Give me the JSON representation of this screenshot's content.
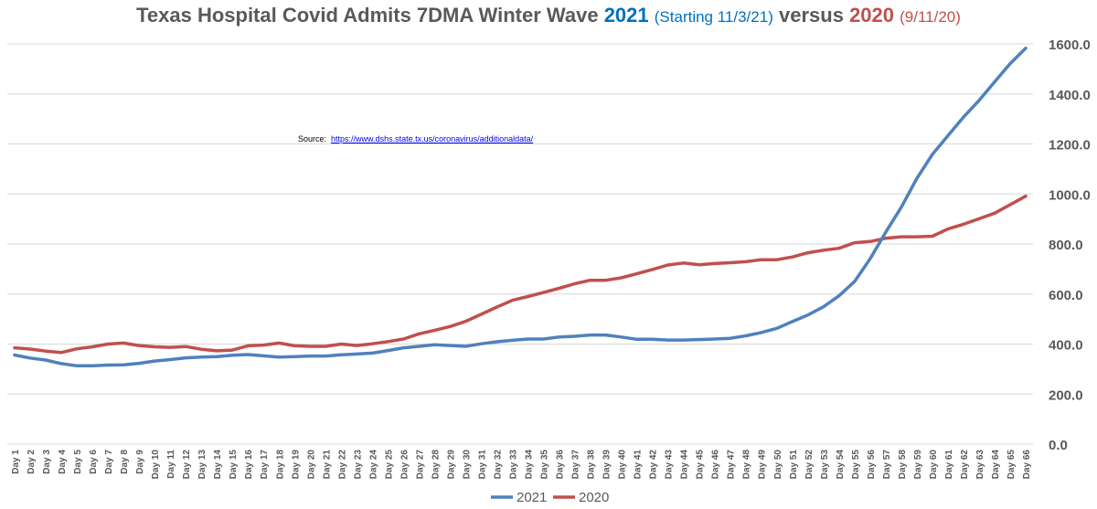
{
  "title": {
    "main": "Texas Hospital Covid Admits 7DMA Winter Wave",
    "year_2021": "2021",
    "sub_2021": "(Starting 11/3/21)",
    "versus": "versus",
    "year_2020": "2020",
    "sub_2020": "(9/11/20)"
  },
  "source": {
    "label": "Source:",
    "url": "https://www.dshs.state.tx.us/coronavirus/additionaldata/"
  },
  "colors": {
    "series_2021": "#4f81bd",
    "series_2020": "#c0504d",
    "grid": "#d9d9d9",
    "axis_text": "#595959"
  },
  "chart_data": {
    "type": "line",
    "ylim": [
      0,
      1600
    ],
    "yticks": [
      "0.0",
      "200.0",
      "400.0",
      "600.0",
      "800.0",
      "1000.0",
      "1200.0",
      "1400.0",
      "1600.0"
    ],
    "grid": true,
    "legend_position": "bottom",
    "categories": [
      "Day 1",
      "Day 2",
      "Day 3",
      "Day 4",
      "Day 5",
      "Day 6",
      "Day 7",
      "Day 8",
      "Day 9",
      "Day 10",
      "Day 11",
      "Day 12",
      "Day 13",
      "Day 14",
      "Day 15",
      "Day 16",
      "Day 17",
      "Day 18",
      "Day 19",
      "Day 20",
      "Day 21",
      "Day 22",
      "Day 23",
      "Day 24",
      "Day 25",
      "Day 26",
      "Day 27",
      "Day 28",
      "Day 29",
      "Day 30",
      "Day 31",
      "Day 32",
      "Day 33",
      "Day 34",
      "Day 35",
      "Day 36",
      "Day 37",
      "Day 38",
      "Day 39",
      "Day 40",
      "Day 41",
      "Day 42",
      "Day 43",
      "Day 44",
      "Day 45",
      "Day 46",
      "Day 47",
      "Day 48",
      "Day 49",
      "Day 50",
      "Day 51",
      "Day 52",
      "Day 53",
      "Day 54",
      "Day 55",
      "Day 56",
      "Day 57",
      "Day 58",
      "Day 59",
      "Day 60",
      "Day 61",
      "Day 62",
      "Day 63",
      "Day 64",
      "Day 65",
      "Day 66"
    ],
    "series": [
      {
        "name": "2021",
        "values": [
          356,
          344,
          336,
          322,
          313,
          313,
          316,
          317,
          323,
          332,
          338,
          345,
          348,
          350,
          355,
          358,
          353,
          348,
          350,
          352,
          352,
          357,
          360,
          364,
          374,
          385,
          391,
          397,
          394,
          391,
          401,
          409,
          415,
          420,
          420,
          428,
          431,
          436,
          436,
          428,
          419,
          419,
          416,
          416,
          418,
          420,
          423,
          433,
          446,
          463,
          490,
          516,
          549,
          593,
          650,
          741,
          847,
          947,
          1062,
          1158,
          1233,
          1307,
          1374,
          1448,
          1521,
          1583
        ]
      },
      {
        "name": "2020",
        "values": [
          385,
          380,
          372,
          366,
          381,
          389,
          400,
          404,
          394,
          389,
          387,
          390,
          379,
          373,
          376,
          393,
          396,
          404,
          393,
          391,
          391,
          400,
          394,
          401,
          410,
          420,
          441,
          455,
          470,
          491,
          519,
          548,
          575,
          590,
          606,
          623,
          641,
          655,
          655,
          665,
          681,
          698,
          716,
          724,
          717,
          722,
          725,
          729,
          737,
          737,
          748,
          765,
          775,
          783,
          805,
          810,
          823,
          829,
          829,
          831,
          860,
          879,
          901,
          923,
          957,
          991
        ]
      }
    ]
  }
}
